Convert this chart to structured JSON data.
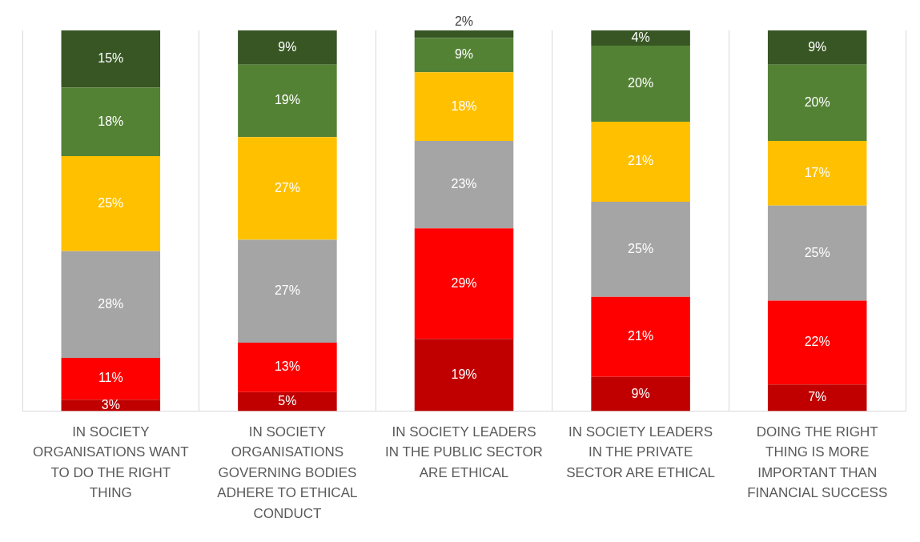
{
  "chart_data": {
    "type": "bar",
    "stacked": true,
    "grid": "x",
    "legend": false,
    "categories": [
      "IN SOCIETY ORGANISATIONS WANT TO DO THE RIGHT THING",
      "IN SOCIETY ORGANISATIONS GOVERNING BODIES ADHERE TO ETHICAL CONDUCT",
      "IN SOCIETY LEADERS IN THE PUBLIC SECTOR ARE ETHICAL",
      "IN SOCIETY LEADERS IN THE PRIVATE SECTOR ARE ETHICAL",
      "DOING THE RIGHT THING IS MORE IMPORTANT THAN FINANCIAL SUCCESS"
    ],
    "series": [
      {
        "color": "#c00000",
        "values": [
          3,
          5,
          19,
          9,
          7
        ],
        "value_labels": [
          "3%",
          "5%",
          "19%",
          "9%",
          "7%"
        ]
      },
      {
        "color": "#ff0000",
        "values": [
          11,
          13,
          29,
          21,
          22
        ],
        "value_labels": [
          "11%",
          "13%",
          "29%",
          "21%",
          "22%"
        ]
      },
      {
        "color": "#a5a5a5",
        "values": [
          28,
          27,
          23,
          25,
          25
        ],
        "value_labels": [
          "28%",
          "27%",
          "23%",
          "25%",
          "25%"
        ]
      },
      {
        "color": "#ffc000",
        "values": [
          25,
          27,
          18,
          21,
          17
        ],
        "value_labels": [
          "25%",
          "27%",
          "18%",
          "21%",
          "17%"
        ]
      },
      {
        "color": "#548235",
        "values": [
          18,
          19,
          9,
          20,
          20
        ],
        "value_labels": [
          "18%",
          "19%",
          "9%",
          "20%",
          "20%"
        ]
      },
      {
        "color": "#375623",
        "values": [
          15,
          9,
          2,
          4,
          9
        ],
        "value_labels": [
          "15%",
          "9%",
          "2%",
          "4%",
          "9%"
        ]
      }
    ]
  }
}
